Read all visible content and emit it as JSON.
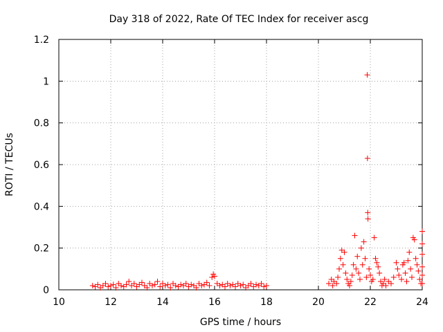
{
  "chart_data": {
    "type": "scatter",
    "title": "Day 318 of 2022, Rate Of TEC Index for receiver ascg",
    "xlabel": "GPS time / hours",
    "ylabel": "ROTI / TECUs",
    "xlim": [
      10,
      24
    ],
    "ylim": [
      0,
      1.2
    ],
    "xticks": [
      10,
      12,
      14,
      16,
      18,
      20,
      22,
      24
    ],
    "yticks": [
      0,
      0.2,
      0.4,
      0.6,
      0.8,
      1,
      1.2
    ],
    "ytick_labels": [
      "0",
      "0.2",
      "0.4",
      "0.6",
      "0.8",
      "1",
      "1.2"
    ],
    "grid": true,
    "marker": "+",
    "color": "#ff0000",
    "series": [
      {
        "values": [
          [
            11.3,
            0.02
          ],
          [
            11.4,
            0.015
          ],
          [
            11.5,
            0.025
          ],
          [
            11.6,
            0.01
          ],
          [
            11.7,
            0.02
          ],
          [
            11.8,
            0.03
          ],
          [
            11.9,
            0.015
          ],
          [
            12.0,
            0.02
          ],
          [
            12.1,
            0.025
          ],
          [
            12.2,
            0.01
          ],
          [
            12.3,
            0.03
          ],
          [
            12.4,
            0.02
          ],
          [
            12.5,
            0.015
          ],
          [
            12.6,
            0.025
          ],
          [
            12.7,
            0.04
          ],
          [
            12.8,
            0.02
          ],
          [
            12.9,
            0.03
          ],
          [
            13.0,
            0.015
          ],
          [
            13.1,
            0.025
          ],
          [
            13.2,
            0.035
          ],
          [
            13.3,
            0.02
          ],
          [
            13.4,
            0.01
          ],
          [
            13.5,
            0.03
          ],
          [
            13.6,
            0.02
          ],
          [
            13.7,
            0.025
          ],
          [
            13.8,
            0.04
          ],
          [
            13.9,
            0.015
          ],
          [
            14.0,
            0.03
          ],
          [
            14.1,
            0.02
          ],
          [
            14.2,
            0.025
          ],
          [
            14.3,
            0.01
          ],
          [
            14.4,
            0.03
          ],
          [
            14.5,
            0.02
          ],
          [
            14.6,
            0.015
          ],
          [
            14.7,
            0.025
          ],
          [
            14.8,
            0.02
          ],
          [
            14.9,
            0.03
          ],
          [
            15.0,
            0.015
          ],
          [
            15.1,
            0.025
          ],
          [
            15.2,
            0.02
          ],
          [
            15.3,
            0.01
          ],
          [
            15.4,
            0.03
          ],
          [
            15.5,
            0.02
          ],
          [
            15.6,
            0.025
          ],
          [
            15.7,
            0.035
          ],
          [
            15.8,
            0.02
          ],
          [
            15.9,
            0.06
          ],
          [
            15.95,
            0.075
          ],
          [
            16.0,
            0.065
          ],
          [
            16.1,
            0.03
          ],
          [
            16.2,
            0.02
          ],
          [
            16.3,
            0.025
          ],
          [
            16.4,
            0.015
          ],
          [
            16.5,
            0.03
          ],
          [
            16.6,
            0.02
          ],
          [
            16.7,
            0.025
          ],
          [
            16.8,
            0.015
          ],
          [
            16.9,
            0.03
          ],
          [
            17.0,
            0.02
          ],
          [
            17.1,
            0.025
          ],
          [
            17.2,
            0.01
          ],
          [
            17.3,
            0.02
          ],
          [
            17.4,
            0.03
          ],
          [
            17.5,
            0.015
          ],
          [
            17.6,
            0.025
          ],
          [
            17.7,
            0.02
          ],
          [
            17.8,
            0.03
          ],
          [
            17.9,
            0.015
          ],
          [
            18.0,
            0.02
          ],
          [
            20.4,
            0.03
          ],
          [
            20.5,
            0.05
          ],
          [
            20.55,
            0.02
          ],
          [
            20.6,
            0.04
          ],
          [
            20.7,
            0.03
          ],
          [
            20.75,
            0.06
          ],
          [
            20.8,
            0.1
          ],
          [
            20.85,
            0.15
          ],
          [
            20.9,
            0.19
          ],
          [
            20.95,
            0.12
          ],
          [
            21.0,
            0.18
          ],
          [
            21.05,
            0.08
          ],
          [
            21.1,
            0.05
          ],
          [
            21.15,
            0.03
          ],
          [
            21.2,
            0.02
          ],
          [
            21.25,
            0.04
          ],
          [
            21.3,
            0.07
          ],
          [
            21.35,
            0.12
          ],
          [
            21.4,
            0.26
          ],
          [
            21.45,
            0.1
          ],
          [
            21.5,
            0.16
          ],
          [
            21.55,
            0.08
          ],
          [
            21.6,
            0.05
          ],
          [
            21.65,
            0.2
          ],
          [
            21.7,
            0.12
          ],
          [
            21.75,
            0.23
          ],
          [
            21.8,
            0.15
          ],
          [
            21.85,
            0.06
          ],
          [
            21.88,
            1.03
          ],
          [
            21.89,
            0.63
          ],
          [
            21.9,
            0.37
          ],
          [
            21.91,
            0.34
          ],
          [
            21.95,
            0.1
          ],
          [
            22.0,
            0.07
          ],
          [
            22.05,
            0.04
          ],
          [
            22.1,
            0.05
          ],
          [
            22.15,
            0.25
          ],
          [
            22.2,
            0.15
          ],
          [
            22.25,
            0.13
          ],
          [
            22.3,
            0.11
          ],
          [
            22.35,
            0.08
          ],
          [
            22.4,
            0.04
          ],
          [
            22.45,
            0.02
          ],
          [
            22.5,
            0.03
          ],
          [
            22.55,
            0.05
          ],
          [
            22.6,
            0.02
          ],
          [
            22.7,
            0.04
          ],
          [
            22.8,
            0.03
          ],
          [
            22.9,
            0.06
          ],
          [
            23.0,
            0.13
          ],
          [
            23.05,
            0.1
          ],
          [
            23.1,
            0.07
          ],
          [
            23.2,
            0.05
          ],
          [
            23.25,
            0.12
          ],
          [
            23.3,
            0.13
          ],
          [
            23.35,
            0.08
          ],
          [
            23.4,
            0.04
          ],
          [
            23.45,
            0.14
          ],
          [
            23.5,
            0.18
          ],
          [
            23.55,
            0.1
          ],
          [
            23.6,
            0.06
          ],
          [
            23.65,
            0.25
          ],
          [
            23.7,
            0.24
          ],
          [
            23.75,
            0.15
          ],
          [
            23.8,
            0.12
          ],
          [
            23.85,
            0.09
          ],
          [
            23.9,
            0.05
          ],
          [
            23.95,
            0.03
          ],
          [
            24.0,
            0.28
          ],
          [
            24.0,
            0.22
          ],
          [
            24.0,
            0.17
          ],
          [
            24.0,
            0.11
          ],
          [
            24.0,
            0.07
          ],
          [
            24.0,
            0.03
          ]
        ]
      }
    ]
  }
}
